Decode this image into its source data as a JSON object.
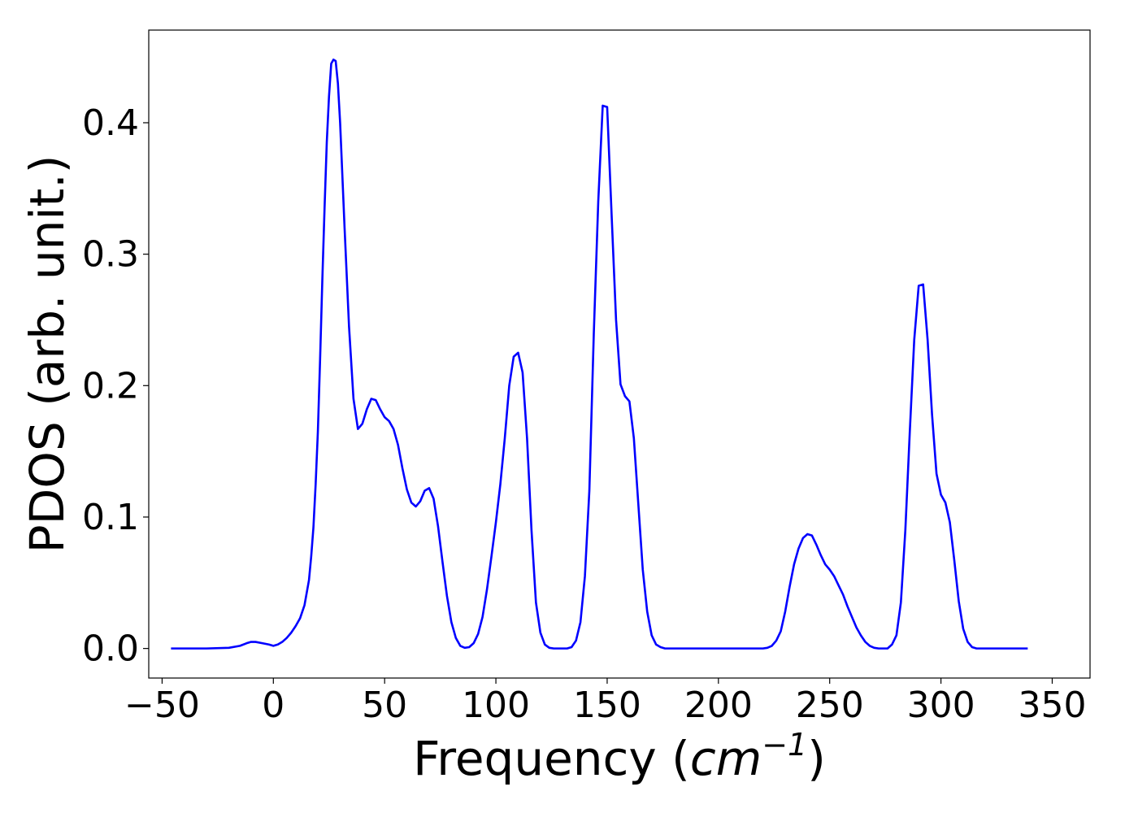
{
  "chart_data": {
    "type": "line",
    "title": "",
    "xlabel": "Frequency",
    "xlabel_unit": "cm",
    "xlabel_unit_exponent": "−1",
    "ylabel": "PDOS (arb. unit.)",
    "xlim": [
      -56,
      367
    ],
    "ylim": [
      -0.0225,
      0.4705
    ],
    "xticks": [
      -50,
      0,
      50,
      100,
      150,
      200,
      250,
      300,
      350
    ],
    "xtick_labels": [
      "−50",
      "0",
      "50",
      "100",
      "150",
      "200",
      "250",
      "300",
      "350"
    ],
    "yticks": [
      0.0,
      0.1,
      0.2,
      0.3,
      0.4
    ],
    "ytick_labels": [
      "0.0",
      "0.1",
      "0.2",
      "0.3",
      "0.4"
    ],
    "grid": false,
    "legend": "none",
    "line_color": "#0000ff",
    "series": [
      {
        "x": [
          -46,
          -40,
          -30,
          -20,
          -15,
          -12,
          -10,
          -8,
          -5,
          -2,
          0,
          2,
          4,
          6,
          8,
          10,
          12,
          14,
          16,
          17,
          18,
          19,
          20,
          21,
          22,
          23,
          24,
          25,
          26,
          27,
          28,
          29,
          30,
          32,
          34,
          36,
          38,
          40,
          42,
          44,
          46,
          48,
          50,
          52,
          54,
          56,
          58,
          60,
          62,
          64,
          66,
          68,
          70,
          72,
          74,
          76,
          78,
          80,
          82,
          84,
          86,
          88,
          90,
          92,
          94,
          96,
          98,
          100,
          102,
          104,
          106,
          108,
          110,
          112,
          114,
          116,
          118,
          120,
          122,
          124,
          126,
          128,
          130,
          132,
          134,
          136,
          138,
          140,
          142,
          144,
          146,
          148,
          150,
          152,
          154,
          156,
          158,
          160,
          162,
          164,
          166,
          168,
          170,
          172,
          174,
          176,
          180,
          200,
          220,
          222,
          224,
          226,
          228,
          230,
          232,
          234,
          236,
          238,
          240,
          242,
          244,
          246,
          248,
          250,
          252,
          254,
          256,
          258,
          260,
          262,
          264,
          266,
          268,
          270,
          272,
          274,
          276,
          278,
          280,
          282,
          284,
          286,
          288,
          290,
          292,
          294,
          296,
          298,
          300,
          302,
          304,
          306,
          308,
          310,
          312,
          314,
          316,
          318,
          320,
          330,
          339
        ],
        "y": [
          0.0,
          0.0,
          0.0,
          0.0005,
          0.002,
          0.004,
          0.005,
          0.005,
          0.004,
          0.003,
          0.002,
          0.003,
          0.005,
          0.008,
          0.012,
          0.017,
          0.023,
          0.033,
          0.052,
          0.07,
          0.092,
          0.125,
          0.165,
          0.22,
          0.28,
          0.335,
          0.385,
          0.42,
          0.445,
          0.448,
          0.447,
          0.43,
          0.4,
          0.32,
          0.245,
          0.19,
          0.167,
          0.171,
          0.182,
          0.19,
          0.189,
          0.182,
          0.176,
          0.173,
          0.167,
          0.155,
          0.137,
          0.121,
          0.111,
          0.108,
          0.112,
          0.12,
          0.122,
          0.114,
          0.093,
          0.066,
          0.04,
          0.02,
          0.008,
          0.002,
          0.0005,
          0.001,
          0.004,
          0.011,
          0.024,
          0.045,
          0.07,
          0.096,
          0.125,
          0.16,
          0.2,
          0.222,
          0.225,
          0.21,
          0.16,
          0.09,
          0.035,
          0.012,
          0.003,
          0.0005,
          0.0,
          0.0,
          0.0,
          0.0,
          0.001,
          0.006,
          0.02,
          0.055,
          0.12,
          0.24,
          0.34,
          0.413,
          0.412,
          0.33,
          0.25,
          0.201,
          0.192,
          0.188,
          0.16,
          0.11,
          0.06,
          0.028,
          0.01,
          0.003,
          0.001,
          0.0,
          0.0,
          0.0,
          0.0,
          0.0005,
          0.002,
          0.006,
          0.013,
          0.028,
          0.047,
          0.064,
          0.076,
          0.084,
          0.087,
          0.086,
          0.079,
          0.071,
          0.064,
          0.06,
          0.055,
          0.048,
          0.041,
          0.032,
          0.024,
          0.016,
          0.01,
          0.005,
          0.002,
          0.0005,
          0.0,
          0.0,
          0.0,
          0.003,
          0.01,
          0.035,
          0.09,
          0.165,
          0.235,
          0.276,
          0.277,
          0.235,
          0.178,
          0.133,
          0.117,
          0.111,
          0.096,
          0.067,
          0.036,
          0.015,
          0.005,
          0.001,
          0.0,
          0.0,
          0.0,
          0.0,
          0.0
        ]
      }
    ]
  }
}
